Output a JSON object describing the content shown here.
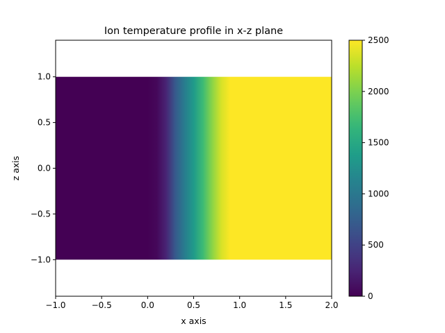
{
  "chart_data": {
    "type": "heatmap",
    "title": "Ion temperature profile in x-z plane",
    "xlabel": "x axis",
    "ylabel": "z axis",
    "xlim": [
      -1.0,
      2.0
    ],
    "ylim": [
      -1.4,
      1.4
    ],
    "x_ticks": [
      -1.0,
      -0.5,
      0.0,
      0.5,
      1.0,
      1.5,
      2.0
    ],
    "x_tick_labels": [
      "−1.0",
      "−0.5",
      "0.0",
      "0.5",
      "1.0",
      "1.5",
      "2.0"
    ],
    "y_ticks": [
      -1.0,
      -0.5,
      0.0,
      0.5,
      1.0
    ],
    "y_tick_labels": [
      "−1.0",
      "−0.5",
      "0.0",
      "0.5",
      "1.0"
    ],
    "data_extent": {
      "x": [
        -1.0,
        2.0
      ],
      "z": [
        -1.0,
        1.0
      ]
    },
    "colormap": "viridis",
    "colorbar": {
      "range": [
        0,
        2500
      ],
      "ticks": [
        0,
        500,
        1000,
        1500,
        2000,
        2500
      ],
      "tick_labels": [
        "0",
        "500",
        "1000",
        "1500",
        "2000",
        "2500"
      ]
    },
    "profile": {
      "x": [
        -1.0,
        0.0,
        0.1,
        0.2,
        0.3,
        0.4,
        0.5,
        0.6,
        0.7,
        0.8,
        0.9,
        2.0
      ],
      "temperature": [
        0,
        0,
        50,
        250,
        700,
        1050,
        1350,
        1700,
        2050,
        2350,
        2500,
        2500
      ]
    },
    "grid": false
  }
}
